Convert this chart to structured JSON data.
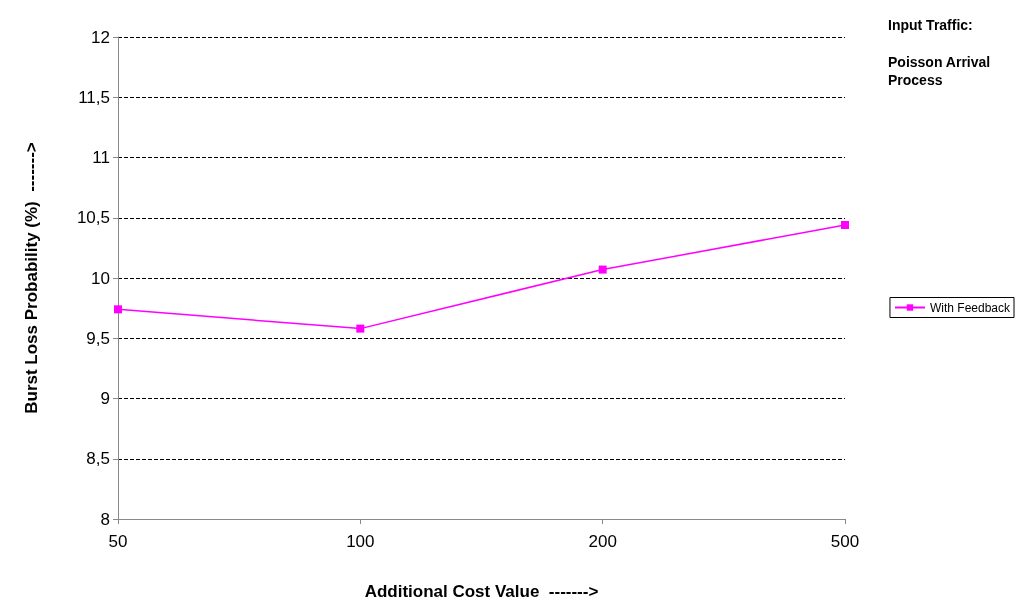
{
  "chart_data": {
    "type": "line",
    "xlabel": "Additional Cost Value  ------->",
    "ylabel": "Burst Loss Probability (%)  ------->",
    "categories": [
      "50",
      "100",
      "200",
      "500"
    ],
    "series": [
      {
        "name": "With Feedback",
        "color": "#ff00ff",
        "values": [
          9.74,
          9.58,
          10.07,
          10.44
        ]
      }
    ],
    "ylim": [
      8,
      12
    ],
    "yticks": [
      8,
      {
        "value": 8.5,
        "label": "8,5"
      },
      9,
      {
        "value": 9.5,
        "label": "9,5"
      },
      10,
      {
        "value": 10.5,
        "label": "10,5"
      },
      11,
      {
        "value": 11.5,
        "label": "11,5"
      },
      12
    ],
    "grid": "y",
    "legend": "right",
    "marker": "square",
    "line_style": "solid",
    "annotations": [
      "Input Traffic:",
      "Poisson Arrival Process"
    ]
  }
}
